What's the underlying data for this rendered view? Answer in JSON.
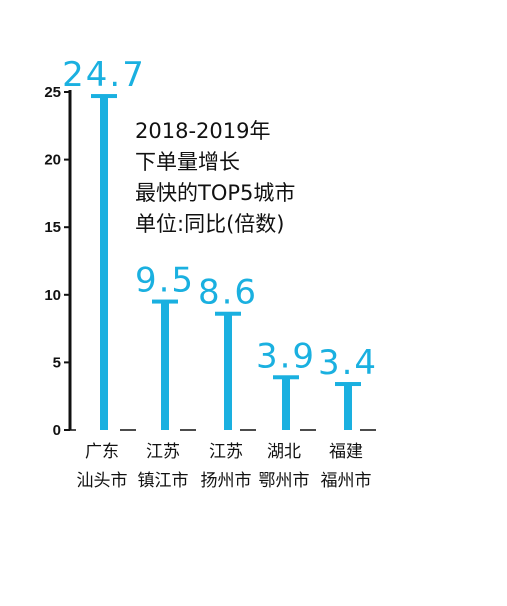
{
  "chart_data": {
    "type": "bar",
    "title_lines": [
      "2018-2019年",
      "下单量增长",
      "最快的TOP5城市",
      "单位:同比(倍数)"
    ],
    "categories": [
      [
        "广东",
        "汕头市"
      ],
      [
        "江苏",
        "镇江市"
      ],
      [
        "江苏",
        "扬州市"
      ],
      [
        "湖北",
        "鄂州市"
      ],
      [
        "福建",
        "福州市"
      ]
    ],
    "values": [
      24.7,
      9.5,
      8.6,
      3.9,
      3.4
    ],
    "value_labels": [
      "24.7",
      "9.5",
      "8.6",
      "3.9",
      "3.4"
    ],
    "yticks": [
      "0",
      "5",
      "10",
      "15",
      "20",
      "25"
    ],
    "ylim": [
      0,
      25
    ],
    "grid": false,
    "colors": {
      "bar": "#1ab0e0",
      "axis": "#111111"
    }
  }
}
